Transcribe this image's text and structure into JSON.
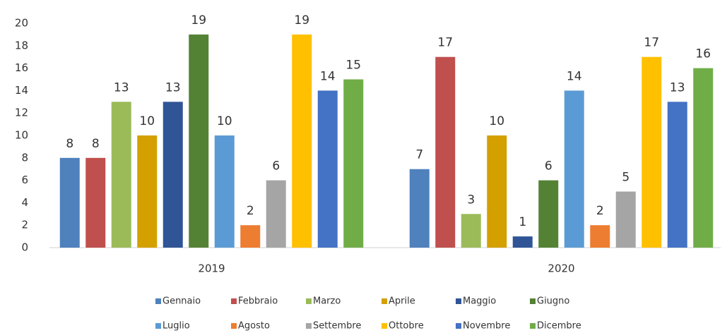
{
  "chart_data": {
    "type": "bar",
    "categories": [
      "2019",
      "2020"
    ],
    "series": [
      {
        "name": "Gennaio",
        "color": "#4f81bd",
        "values": [
          8,
          7
        ]
      },
      {
        "name": "Febbraio",
        "color": "#c0504d",
        "values": [
          8,
          17
        ]
      },
      {
        "name": "Marzo",
        "color": "#9bbb59",
        "values": [
          13,
          3
        ]
      },
      {
        "name": "Aprile",
        "color": "#d4a000",
        "values": [
          10,
          10
        ]
      },
      {
        "name": "Maggio",
        "color": "#2f5597",
        "values": [
          13,
          1
        ]
      },
      {
        "name": "Giugno",
        "color": "#548235",
        "values": [
          19,
          6
        ]
      },
      {
        "name": "Luglio",
        "color": "#5b9bd5",
        "values": [
          10,
          14
        ]
      },
      {
        "name": "Agosto",
        "color": "#ed7d31",
        "values": [
          2,
          2
        ]
      },
      {
        "name": "Settembre",
        "color": "#a5a5a5",
        "values": [
          6,
          5
        ]
      },
      {
        "name": "Ottobre",
        "color": "#ffc000",
        "values": [
          19,
          17
        ]
      },
      {
        "name": "Novembre",
        "color": "#4472c4",
        "values": [
          14,
          13
        ]
      },
      {
        "name": "Dicembre",
        "color": "#70ad47",
        "values": [
          15,
          16
        ]
      }
    ],
    "ylim": [
      0,
      20
    ],
    "yticks": [
      0,
      2,
      4,
      6,
      8,
      10,
      12,
      14,
      16,
      18,
      20
    ],
    "grid": false,
    "legend": "bottom"
  }
}
